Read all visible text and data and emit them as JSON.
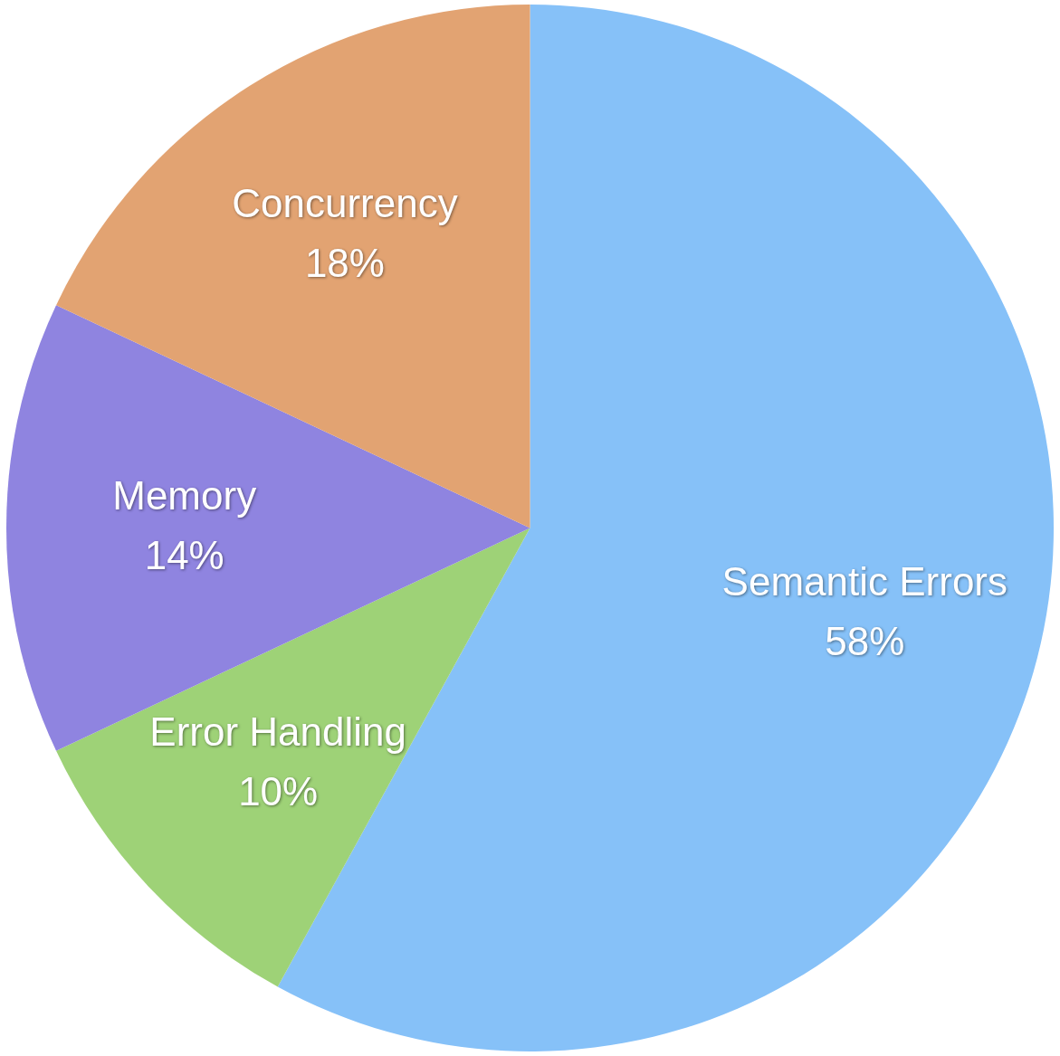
{
  "chart_data": {
    "type": "pie",
    "categories": [
      "Semantic Errors",
      "Error Handling",
      "Memory",
      "Concurrency"
    ],
    "values": [
      58,
      10,
      14,
      18
    ],
    "colors": [
      "#86c1f8",
      "#9ed277",
      "#8f84e0",
      "#e2a372"
    ],
    "value_labels": [
      "58%",
      "10%",
      "14%",
      "18%"
    ],
    "legend": false
  }
}
